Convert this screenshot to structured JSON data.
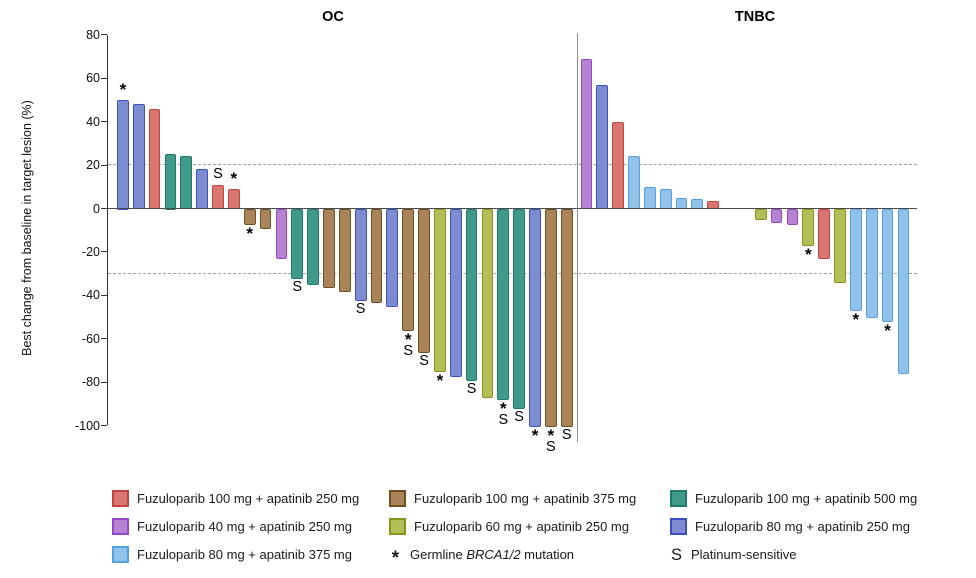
{
  "y_axis_label": "Best change from baseline in target lesion (%)",
  "groups": {
    "f100a250": {
      "label": "Fuzuloparib 100 mg + apatinib 250 mg",
      "fill": "#D8766F",
      "stroke": "#C1443F"
    },
    "f100a375": {
      "label": "Fuzuloparib 100 mg + apatinib 375 mg",
      "fill": "#A9845A",
      "stroke": "#71501F"
    },
    "f100a500": {
      "label": "Fuzuloparib 100 mg + apatinib 500 mg",
      "fill": "#41998B",
      "stroke": "#1F7A6B"
    },
    "f40a250": {
      "label": "Fuzuloparib 40 mg + apatinib 250 mg",
      "fill": "#B583D2",
      "stroke": "#9547C8"
    },
    "f60a250": {
      "label": "Fuzuloparib 60 mg + apatinib 250 mg",
      "fill": "#B6BE58",
      "stroke": "#85941B"
    },
    "f80a250": {
      "label": "Fuzuloparib 80 mg + apatinib 250 mg",
      "fill": "#7D8CCE",
      "stroke": "#3C50C3"
    },
    "f80a375": {
      "label": "Fuzuloparib 80 mg + apatinib 375 mg",
      "fill": "#90C2EA",
      "stroke": "#56A0E0"
    }
  },
  "legend_order": [
    "f100a250",
    "f100a375",
    "f100a500",
    "f40a250",
    "f60a250",
    "f80a250",
    "f80a375"
  ],
  "marker_legend": [
    {
      "symbol": "*",
      "label_parts": [
        {
          "t": "Germline "
        },
        {
          "t": "BRCA1/2",
          "italic": true
        },
        {
          "t": " mutation"
        }
      ]
    },
    {
      "symbol": "S",
      "label_parts": [
        {
          "t": "Platinum-sensitive"
        }
      ]
    }
  ],
  "chart_data": {
    "type": "bar",
    "ylabel": "Best change from baseline in target lesion (%)",
    "ylim": [
      -100,
      80
    ],
    "yticks": [
      80,
      60,
      40,
      20,
      0,
      -20,
      -40,
      -60,
      -80,
      -100
    ],
    "reference_lines": [
      20,
      -30
    ],
    "legend_position": "bottom",
    "marker_meanings": {
      "*": "Germline BRCA1/2 mutation",
      "S": "Platinum-sensitive"
    },
    "panels": [
      {
        "title": "OC",
        "bars": [
          {
            "v": 50,
            "g": "f80a250",
            "m": "*"
          },
          {
            "v": 48,
            "g": "f80a250",
            "m": ""
          },
          {
            "v": 46,
            "g": "f100a250",
            "m": ""
          },
          {
            "v": 25,
            "g": "f100a500",
            "m": ""
          },
          {
            "v": 24,
            "g": "f100a500",
            "m": ""
          },
          {
            "v": 18,
            "g": "f80a250",
            "m": ""
          },
          {
            "v": 11,
            "g": "f100a250",
            "m": "S"
          },
          {
            "v": 9,
            "g": "f100a250",
            "m": "*"
          },
          {
            "v": -7,
            "g": "f100a375",
            "m": "*"
          },
          {
            "v": -9,
            "g": "f100a375",
            "m": ""
          },
          {
            "v": -23,
            "g": "f40a250",
            "m": ""
          },
          {
            "v": -32,
            "g": "f100a500",
            "m": "S"
          },
          {
            "v": -35,
            "g": "f100a500",
            "m": ""
          },
          {
            "v": -36,
            "g": "f100a375",
            "m": ""
          },
          {
            "v": -38,
            "g": "f100a375",
            "m": ""
          },
          {
            "v": -42,
            "g": "f80a250",
            "m": "S"
          },
          {
            "v": -43,
            "g": "f100a375",
            "m": ""
          },
          {
            "v": -45,
            "g": "f80a250",
            "m": ""
          },
          {
            "v": -56,
            "g": "f100a375",
            "m": "*S"
          },
          {
            "v": -66,
            "g": "f100a375",
            "m": "S"
          },
          {
            "v": -75,
            "g": "f60a250",
            "m": "*"
          },
          {
            "v": -77,
            "g": "f80a250",
            "m": ""
          },
          {
            "v": -79,
            "g": "f100a500",
            "m": "S"
          },
          {
            "v": -87,
            "g": "f60a250",
            "m": ""
          },
          {
            "v": -88,
            "g": "f100a500",
            "m": "*S"
          },
          {
            "v": -92,
            "g": "f100a500",
            "m": "S"
          },
          {
            "v": -100,
            "g": "f80a250",
            "m": "*"
          },
          {
            "v": -100,
            "g": "f100a375",
            "m": "*S"
          },
          {
            "v": -100,
            "g": "f100a375",
            "m": "S"
          }
        ]
      },
      {
        "title": "TNBC",
        "gap_after_index": 8,
        "gap_slots": 2,
        "bars": [
          {
            "v": 69,
            "g": "f40a250",
            "m": ""
          },
          {
            "v": 57,
            "g": "f80a250",
            "m": ""
          },
          {
            "v": 40,
            "g": "f100a250",
            "m": ""
          },
          {
            "v": 24,
            "g": "f80a375",
            "m": ""
          },
          {
            "v": 10,
            "g": "f80a375",
            "m": ""
          },
          {
            "v": 9,
            "g": "f80a375",
            "m": ""
          },
          {
            "v": 5,
            "g": "f80a375",
            "m": ""
          },
          {
            "v": 4.5,
            "g": "f80a375",
            "m": ""
          },
          {
            "v": 3.5,
            "g": "f100a250",
            "m": ""
          },
          {
            "v": -5,
            "g": "f60a250",
            "m": ""
          },
          {
            "v": -6,
            "g": "f40a250",
            "m": ""
          },
          {
            "v": -7,
            "g": "f40a250",
            "m": ""
          },
          {
            "v": -17,
            "g": "f60a250",
            "m": "*"
          },
          {
            "v": -23,
            "g": "f100a250",
            "m": ""
          },
          {
            "v": -34,
            "g": "f60a250",
            "m": ""
          },
          {
            "v": -47,
            "g": "f80a375",
            "m": "*"
          },
          {
            "v": -50,
            "g": "f80a375",
            "m": ""
          },
          {
            "v": -52,
            "g": "f80a375",
            "m": "*"
          },
          {
            "v": -76,
            "g": "f80a375",
            "m": ""
          }
        ]
      }
    ]
  }
}
